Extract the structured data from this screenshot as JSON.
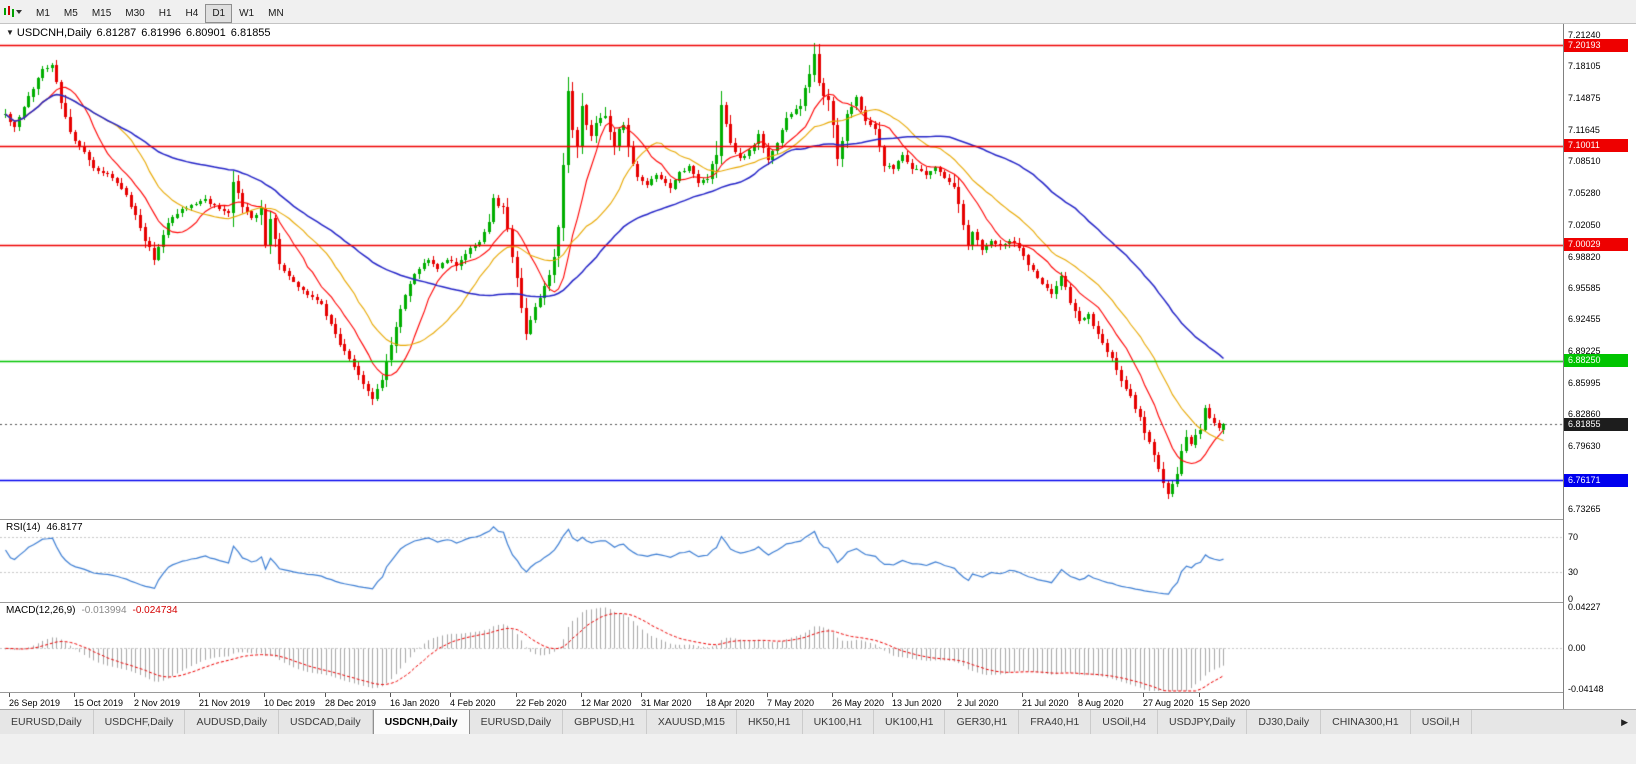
{
  "toolbar": {
    "timeframes": [
      "M1",
      "M5",
      "M15",
      "M30",
      "H1",
      "H4",
      "D1",
      "W1",
      "MN"
    ],
    "active_timeframe": "D1"
  },
  "icons": {
    "collapse_chart": "▼",
    "tab_scroll_right": "▶"
  },
  "chart_header": {
    "symbol": "USDCNH,Daily",
    "open": "6.81287",
    "high": "6.81996",
    "low": "6.80901",
    "close": "6.81855"
  },
  "indicators": {
    "rsi": {
      "label": "RSI(14)",
      "value": "46.8177",
      "levels": [
        "70",
        "30",
        "0"
      ]
    },
    "macd": {
      "label": "MACD(12,26,9)",
      "value_main": "-0.013994",
      "value_signal": "-0.024734",
      "axis": [
        "0.04227",
        "0.00",
        "-0.04148"
      ]
    }
  },
  "price_axis_ticks": [
    "7.21240",
    "7.18105",
    "7.14875",
    "7.11645",
    "7.08510",
    "7.05280",
    "7.02050",
    "6.98820",
    "6.95585",
    "6.92455",
    "6.89225",
    "6.85995",
    "6.82860",
    "6.79630",
    "6.76400",
    "6.73265"
  ],
  "chart_data": {
    "type": "candlestick",
    "symbol": "USDCNH",
    "timeframe": "Daily",
    "bars": 263,
    "current_ohlc": {
      "open": 6.81287,
      "high": 6.81996,
      "low": 6.80901,
      "close": 6.81855
    },
    "current_price": 6.81855,
    "y_axis_range": [
      6.724,
      7.2215
    ],
    "horizontal_lines": [
      {
        "value": 7.20193,
        "color": "#ee0000",
        "type": "resistance"
      },
      {
        "value": 7.10011,
        "color": "#ee0000",
        "type": "resistance"
      },
      {
        "value": 7.00029,
        "color": "#ee0000",
        "type": "resistance"
      },
      {
        "value": 6.8825,
        "color": "#00c400",
        "type": "support"
      },
      {
        "value": 6.76171,
        "color": "#0000ee",
        "type": "support"
      }
    ],
    "moving_averages": [
      {
        "period": 10,
        "color": "#ff0000"
      },
      {
        "period": 21,
        "color": "#e8a800"
      },
      {
        "period": 50,
        "color": "#2525c8"
      }
    ],
    "rsi_levels": [
      70,
      30,
      0
    ],
    "macd_axis": {
      "max": 0.04227,
      "zero": 0.0,
      "min": -0.04148
    },
    "x_axis_labels": [
      {
        "bar": 1,
        "label": "26 Sep 2019"
      },
      {
        "bar": 15,
        "label": "15 Oct 2019"
      },
      {
        "bar": 28,
        "label": "2 Nov 2019"
      },
      {
        "bar": 42,
        "label": "21 Nov 2019"
      },
      {
        "bar": 56,
        "label": "10 Dec 2019"
      },
      {
        "bar": 69,
        "label": "28 Dec 2019"
      },
      {
        "bar": 83,
        "label": "16 Jan 2020"
      },
      {
        "bar": 96,
        "label": "4 Feb 2020"
      },
      {
        "bar": 110,
        "label": "22 Feb 2020"
      },
      {
        "bar": 124,
        "label": "12 Mar 2020"
      },
      {
        "bar": 137,
        "label": "31 Mar 2020"
      },
      {
        "bar": 151,
        "label": "18 Apr 2020"
      },
      {
        "bar": 164,
        "label": "7 May 2020"
      },
      {
        "bar": 178,
        "label": "26 May 2020"
      },
      {
        "bar": 191,
        "label": "13 Jun 2020"
      },
      {
        "bar": 205,
        "label": "2 Jul 2020"
      },
      {
        "bar": 219,
        "label": "21 Jul 2020"
      },
      {
        "bar": 231,
        "label": "8 Aug 2020"
      },
      {
        "bar": 245,
        "label": "27 Aug 2020"
      },
      {
        "bar": 257,
        "label": "15 Sep 2020"
      }
    ],
    "price_path": [
      [
        0,
        7.132
      ],
      [
        2,
        7.118
      ],
      [
        5,
        7.149
      ],
      [
        8,
        7.178
      ],
      [
        10,
        7.183
      ],
      [
        12,
        7.145
      ],
      [
        14,
        7.112
      ],
      [
        16,
        7.1
      ],
      [
        19,
        7.078
      ],
      [
        23,
        7.068
      ],
      [
        26,
        7.05
      ],
      [
        28,
        7.03
      ],
      [
        30,
        7.006
      ],
      [
        32,
        6.986
      ],
      [
        35,
        7.024
      ],
      [
        38,
        7.036
      ],
      [
        43,
        7.046
      ],
      [
        46,
        7.036
      ],
      [
        48,
        7.03
      ],
      [
        49,
        7.064
      ],
      [
        51,
        7.038
      ],
      [
        53,
        7.028
      ],
      [
        55,
        7.034
      ],
      [
        56,
        7.002
      ],
      [
        57,
        7.028
      ],
      [
        59,
        6.98
      ],
      [
        62,
        6.962
      ],
      [
        64,
        6.954
      ],
      [
        66,
        6.947
      ],
      [
        68,
        6.94
      ],
      [
        70,
        6.92
      ],
      [
        72,
        6.9
      ],
      [
        75,
        6.876
      ],
      [
        77,
        6.86
      ],
      [
        79,
        6.844
      ],
      [
        81,
        6.864
      ],
      [
        83,
        6.9
      ],
      [
        85,
        6.934
      ],
      [
        87,
        6.962
      ],
      [
        89,
        6.976
      ],
      [
        91,
        6.986
      ],
      [
        93,
        6.976
      ],
      [
        95,
        6.986
      ],
      [
        97,
        6.978
      ],
      [
        99,
        6.992
      ],
      [
        102,
        7.004
      ],
      [
        104,
        7.02
      ],
      [
        105,
        7.044
      ],
      [
        107,
        7.036
      ],
      [
        108,
        7.016
      ],
      [
        109,
        6.99
      ],
      [
        110,
        6.966
      ],
      [
        112,
        6.912
      ],
      [
        114,
        6.936
      ],
      [
        116,
        6.956
      ],
      [
        118,
        6.988
      ],
      [
        119,
        7.022
      ],
      [
        120,
        7.084
      ],
      [
        121,
        7.158
      ],
      [
        122,
        7.12
      ],
      [
        123,
        7.1
      ],
      [
        124,
        7.14
      ],
      [
        125,
        7.124
      ],
      [
        126,
        7.11
      ],
      [
        127,
        7.122
      ],
      [
        129,
        7.132
      ],
      [
        130,
        7.114
      ],
      [
        131,
        7.1
      ],
      [
        132,
        7.116
      ],
      [
        133,
        7.12
      ],
      [
        134,
        7.098
      ],
      [
        135,
        7.082
      ],
      [
        136,
        7.068
      ],
      [
        138,
        7.06
      ],
      [
        140,
        7.07
      ],
      [
        143,
        7.057
      ],
      [
        145,
        7.072
      ],
      [
        147,
        7.08
      ],
      [
        149,
        7.062
      ],
      [
        151,
        7.068
      ],
      [
        153,
        7.092
      ],
      [
        154,
        7.14
      ],
      [
        156,
        7.1
      ],
      [
        158,
        7.086
      ],
      [
        160,
        7.094
      ],
      [
        162,
        7.11
      ],
      [
        164,
        7.086
      ],
      [
        166,
        7.104
      ],
      [
        168,
        7.128
      ],
      [
        171,
        7.142
      ],
      [
        173,
        7.172
      ],
      [
        174,
        7.194
      ],
      [
        175,
        7.166
      ],
      [
        176,
        7.15
      ],
      [
        177,
        7.146
      ],
      [
        178,
        7.118
      ],
      [
        179,
        7.088
      ],
      [
        180,
        7.106
      ],
      [
        181,
        7.13
      ],
      [
        183,
        7.15
      ],
      [
        185,
        7.126
      ],
      [
        187,
        7.118
      ],
      [
        189,
        7.082
      ],
      [
        191,
        7.078
      ],
      [
        193,
        7.092
      ],
      [
        195,
        7.078
      ],
      [
        198,
        7.072
      ],
      [
        200,
        7.078
      ],
      [
        202,
        7.068
      ],
      [
        204,
        7.06
      ],
      [
        206,
        7.018
      ],
      [
        207,
        7.002
      ],
      [
        208,
        7.012
      ],
      [
        210,
        6.996
      ],
      [
        212,
        7.004
      ],
      [
        214,
        6.998
      ],
      [
        216,
        7.004
      ],
      [
        218,
        6.998
      ],
      [
        220,
        6.98
      ],
      [
        223,
        6.96
      ],
      [
        225,
        6.95
      ],
      [
        227,
        6.968
      ],
      [
        229,
        6.942
      ],
      [
        231,
        6.922
      ],
      [
        233,
        6.93
      ],
      [
        235,
        6.908
      ],
      [
        238,
        6.884
      ],
      [
        240,
        6.862
      ],
      [
        242,
        6.846
      ],
      [
        244,
        6.824
      ],
      [
        246,
        6.8
      ],
      [
        247,
        6.786
      ],
      [
        248,
        6.772
      ],
      [
        250,
        6.748
      ],
      [
        252,
        6.768
      ],
      [
        253,
        6.79
      ],
      [
        254,
        6.806
      ],
      [
        255,
        6.798
      ],
      [
        256,
        6.808
      ],
      [
        257,
        6.814
      ],
      [
        258,
        6.833
      ],
      [
        259,
        6.824
      ],
      [
        260,
        6.82
      ],
      [
        261,
        6.816
      ],
      [
        262,
        6.8186
      ]
    ]
  },
  "tabs": {
    "items": [
      "EURUSD,Daily",
      "USDCHF,Daily",
      "AUDUSD,Daily",
      "USDCAD,Daily",
      "USDCNH,Daily",
      "EURUSD,Daily",
      "GBPUSD,H1",
      "XAUUSD,M15",
      "HK50,H1",
      "UK100,H1",
      "UK100,H1",
      "GER30,H1",
      "FRA40,H1",
      "USOil,H4",
      "USDJPY,Daily",
      "DJ30,Daily",
      "CHINA300,H1",
      "USOil,H"
    ],
    "active": "USDCNH,Daily"
  },
  "colors": {
    "candle_up": "#00ae00",
    "candle_down": "#e60000",
    "rsi_line": "#3e7fd4",
    "rsi_level": "#c8c8c8",
    "macd_hist": "#a8a8a8",
    "macd_signal": "#ee0000",
    "current_price_tag": "#1d1d1d",
    "current_price_line": "#555555"
  }
}
